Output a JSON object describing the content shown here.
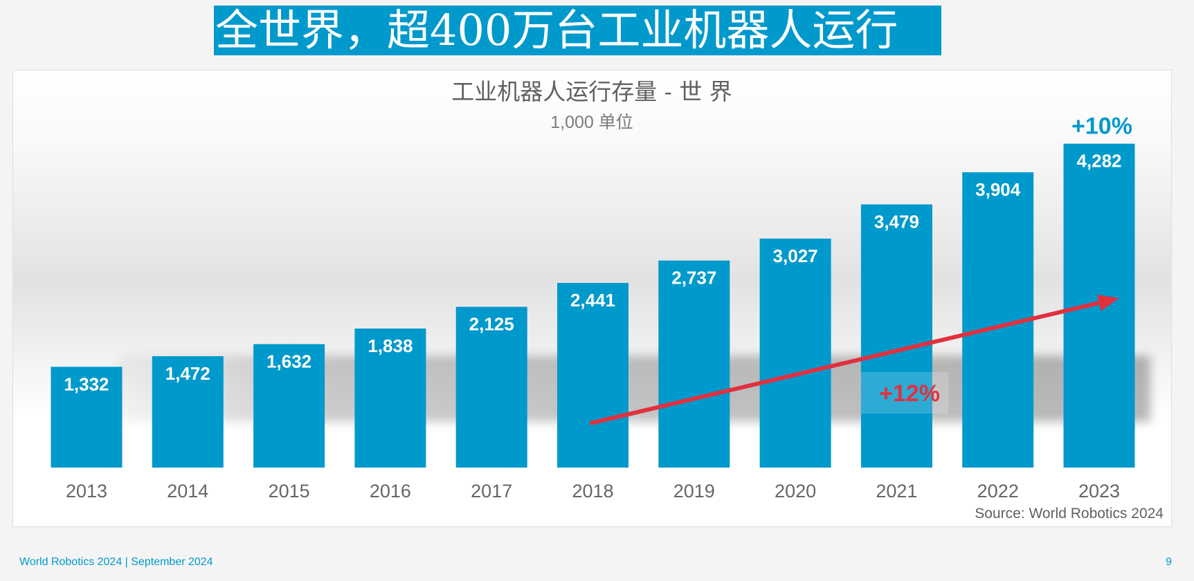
{
  "slide": {
    "title": "全世界，超400万台工业机器人运行",
    "footer_left": "World Robotics 2024  | September 2024",
    "page_number": "9"
  },
  "chart_data": {
    "type": "bar",
    "title": "工业机器人运行存量 - 世 界",
    "subtitle": "1,000 单位",
    "categories": [
      "2013",
      "2014",
      "2015",
      "2016",
      "2017",
      "2018",
      "2019",
      "2020",
      "2021",
      "2022",
      "2023"
    ],
    "values": [
      1332,
      1472,
      1632,
      1838,
      2125,
      2441,
      2737,
      3027,
      3479,
      3904,
      4282
    ],
    "value_labels": [
      "1,332",
      "1,472",
      "1,632",
      "1,838",
      "2,125",
      "2,441",
      "2,737",
      "3,027",
      "3,479",
      "3,904",
      "4,282"
    ],
    "ylim": [
      0,
      4700
    ],
    "grid": false,
    "bar_color": "#0099cc",
    "annotations": {
      "yoy_growth": "+10%",
      "cagr": "+12%",
      "cagr_color": "#e0313f",
      "source": "Source: World Robotics 2024"
    }
  }
}
